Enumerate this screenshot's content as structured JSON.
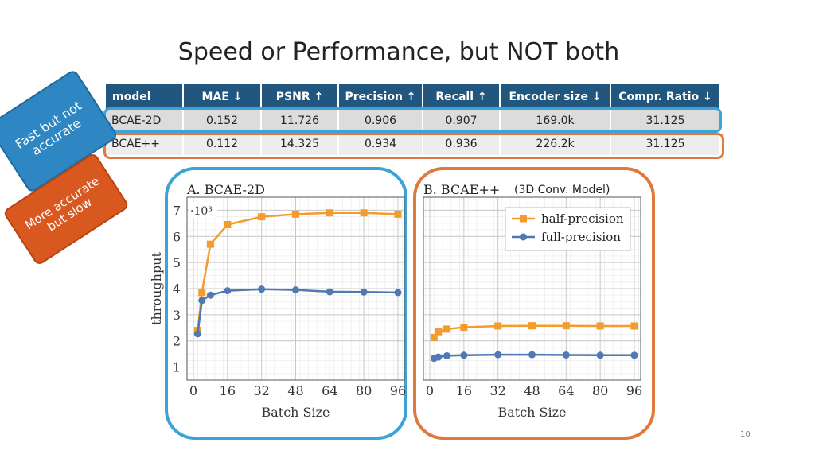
{
  "title": "Speed or Performance, but NOT both",
  "badges": {
    "fast": "Fast but not accurate",
    "slow": "More accurate but slow"
  },
  "table": {
    "headers": [
      "model",
      "MAE ↓",
      "PSNR ↑",
      "Precision ↑",
      "Recall ↑",
      "Encoder size ↓",
      "Compr. Ratio ↓"
    ],
    "rows": [
      [
        "BCAE-2D",
        "0.152",
        "11.726",
        "0.906",
        "0.907",
        "169.0k",
        "31.125"
      ],
      [
        "BCAE++",
        "0.112",
        "14.325",
        "0.934",
        "0.936",
        "226.2k",
        "31.125"
      ]
    ]
  },
  "colors": {
    "highlight_fast": "#3ca3d7",
    "highlight_slow": "#e07a3c",
    "header_bg": "#21577f",
    "half_precision": "#f39c2c",
    "full_precision": "#4f79b2"
  },
  "page_number": "10",
  "chart_data": [
    {
      "type": "line",
      "title": "A. BCAE-2D",
      "xlabel": "Batch Size",
      "ylabel": "throughput",
      "multiplier": "·10³",
      "xticks": [
        0,
        16,
        32,
        48,
        64,
        80,
        96
      ],
      "yticks": [
        1,
        2,
        3,
        4,
        5,
        6,
        7
      ],
      "xlim": [
        -3,
        99
      ],
      "ylim": [
        0.5,
        7.5
      ],
      "grid": true,
      "series": [
        {
          "name": "half-precision",
          "color": "#f39c2c",
          "marker": "square",
          "x": [
            2,
            4,
            8,
            16,
            32,
            48,
            64,
            80,
            96
          ],
          "y": [
            2.4,
            3.85,
            5.7,
            6.45,
            6.75,
            6.85,
            6.9,
            6.9,
            6.85
          ]
        },
        {
          "name": "full-precision",
          "color": "#4f79b2",
          "marker": "circle",
          "x": [
            2,
            4,
            8,
            16,
            32,
            48,
            64,
            80,
            96
          ],
          "y": [
            2.27,
            3.55,
            3.75,
            3.92,
            3.98,
            3.95,
            3.88,
            3.87,
            3.85
          ]
        }
      ]
    },
    {
      "type": "line",
      "title": "B. BCAE++",
      "subtitle": "(3D Conv. Model)",
      "xlabel": "Batch Size",
      "xticks": [
        0,
        16,
        32,
        48,
        64,
        80,
        96
      ],
      "xlim": [
        -3,
        99
      ],
      "ylim": [
        0.5,
        7.5
      ],
      "grid": true,
      "legend_position": "top-right",
      "series": [
        {
          "name": "half-precision",
          "color": "#f39c2c",
          "marker": "square",
          "x": [
            2,
            4,
            8,
            16,
            32,
            48,
            64,
            80,
            96
          ],
          "y": [
            2.13,
            2.35,
            2.45,
            2.52,
            2.57,
            2.58,
            2.58,
            2.57,
            2.57
          ]
        },
        {
          "name": "full-precision",
          "color": "#4f79b2",
          "marker": "circle",
          "x": [
            2,
            4,
            8,
            16,
            32,
            48,
            64,
            80,
            96
          ],
          "y": [
            1.33,
            1.38,
            1.43,
            1.45,
            1.47,
            1.47,
            1.46,
            1.45,
            1.45
          ]
        }
      ]
    }
  ]
}
